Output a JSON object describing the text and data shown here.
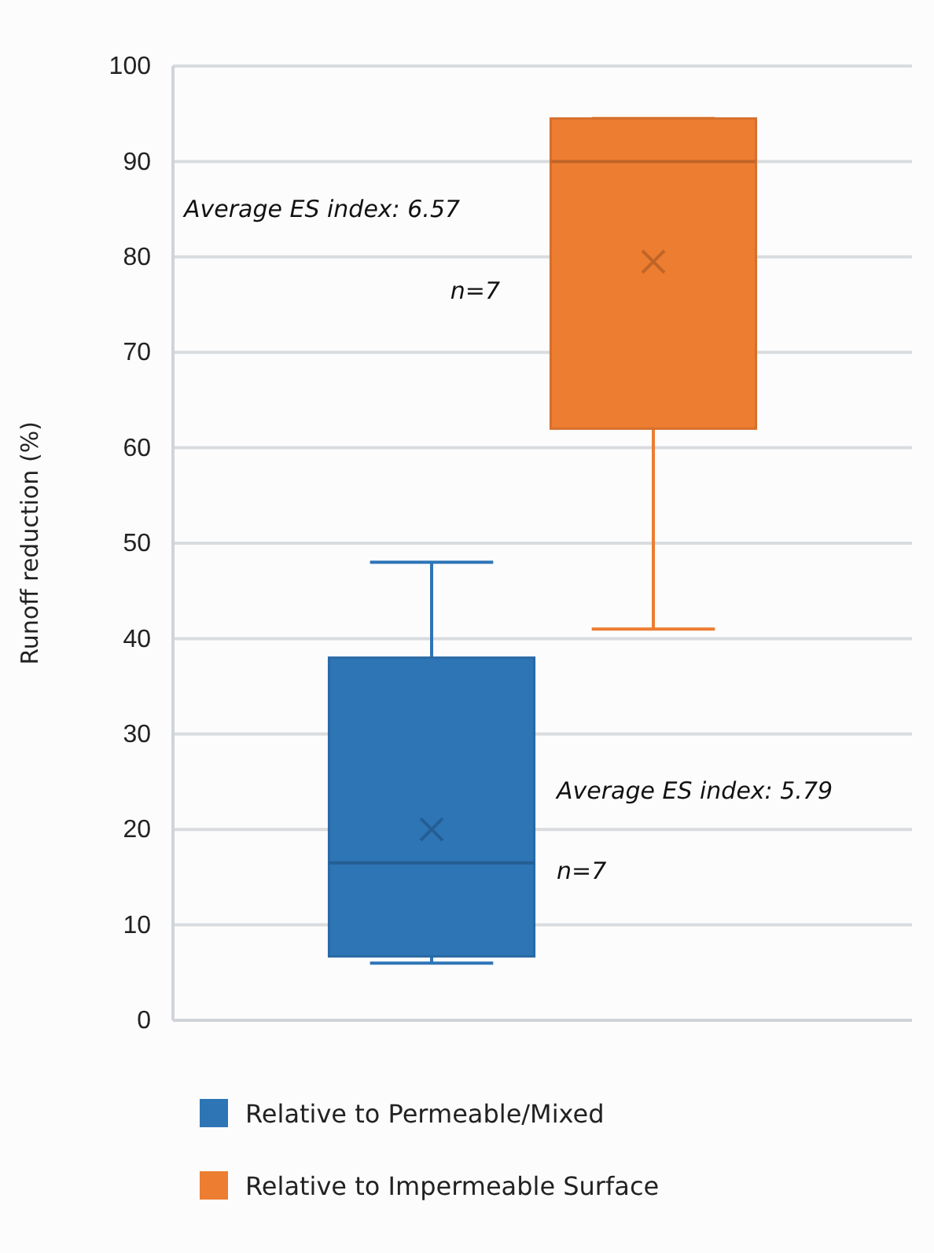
{
  "chart_data": {
    "type": "box",
    "ylabel": "Runoff reduction (%)",
    "categories": [
      null
    ],
    "series": [
      {
        "name": "Relative to Permeable/Mixed",
        "color": "#2e75b6",
        "boxes": [
          {
            "low": 6,
            "q1": 6.7,
            "median": 16.5,
            "q3": 38,
            "high": 48,
            "mean": 20
          }
        ]
      },
      {
        "name": "Relative to Impermeable Surface",
        "color": "#ed7d31",
        "boxes": [
          {
            "low": 41,
            "q1": 62,
            "median": 90,
            "q3": 94.5,
            "high": 94.5,
            "mean": 79.5
          }
        ]
      }
    ],
    "ylim": [
      0,
      100
    ],
    "yticks": [
      0,
      10,
      20,
      30,
      40,
      50,
      60,
      70,
      80,
      90,
      100
    ],
    "grid": "y",
    "legend": "bottom",
    "annotations": [
      "Average ES index: 6.57",
      "n=7",
      "Average ES index: 5.79",
      "n=7"
    ]
  }
}
